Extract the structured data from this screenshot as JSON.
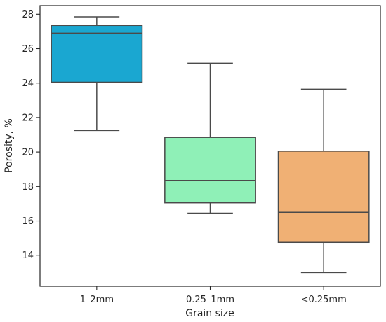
{
  "chart_data": {
    "type": "box",
    "title": "",
    "xlabel": "Grain size",
    "ylabel": "Porosity, %",
    "ylim": [
      12.2,
      28.5
    ],
    "yticks": [
      14,
      16,
      18,
      20,
      22,
      24,
      26,
      28
    ],
    "grid": false,
    "categories": [
      "1–2mm",
      "0.25–1mm",
      "<0.25mm"
    ],
    "boxes": [
      {
        "category": "1–2mm",
        "min": 21.25,
        "q1": 24.05,
        "median": 26.9,
        "q3": 27.35,
        "max": 27.85,
        "color": "#1aa7d1"
      },
      {
        "category": "0.25–1mm",
        "min": 16.45,
        "q1": 17.05,
        "median": 18.35,
        "q3": 20.85,
        "max": 25.15,
        "color": "#8ff0b7"
      },
      {
        "category": "<0.25mm",
        "min": 13.0,
        "q1": 14.75,
        "median": 16.5,
        "q3": 20.05,
        "max": 23.65,
        "color": "#f0b074"
      }
    ]
  }
}
